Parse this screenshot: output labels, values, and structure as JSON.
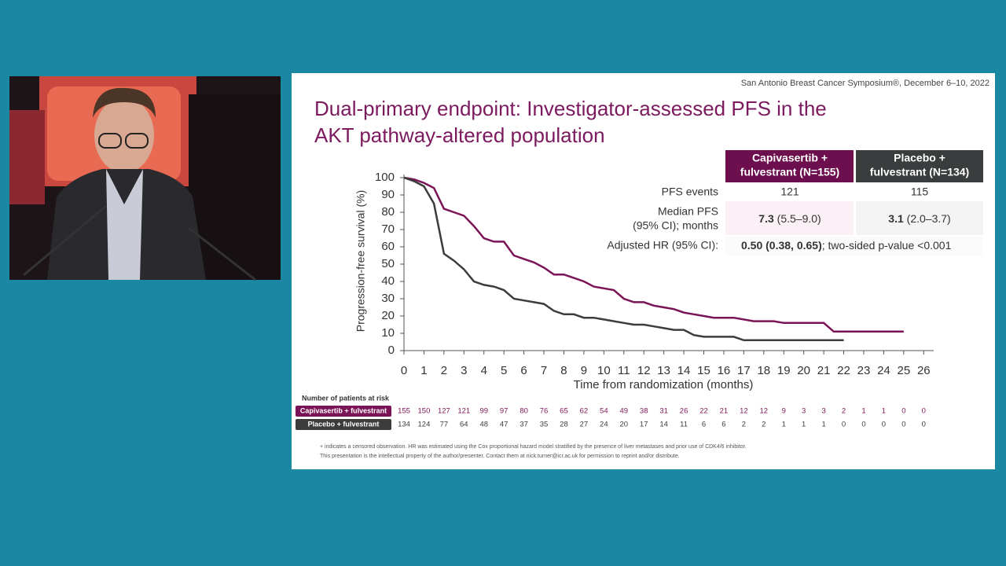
{
  "header": "San Antonio Breast Cancer Symposium®, December 6–10, 2022",
  "title": [
    "Dual-primary endpoint: Investigator-assessed PFS in the",
    "AKT pathway-altered population"
  ],
  "chart_data": {
    "type": "line",
    "x_label": "Time from randomization (months)",
    "y_label": "Progression-free survival (%)",
    "xlim": [
      0,
      26.5
    ],
    "ylim": [
      0,
      100
    ],
    "xticks": [
      0,
      1,
      2,
      3,
      4,
      5,
      6,
      7,
      8,
      9,
      10,
      11,
      12,
      13,
      14,
      15,
      16,
      17,
      18,
      19,
      20,
      21,
      22,
      23,
      24,
      25,
      26
    ],
    "yticks": [
      0,
      10,
      20,
      30,
      40,
      50,
      60,
      70,
      80,
      90,
      100
    ],
    "x": [
      0,
      0.5,
      1,
      1.5,
      2,
      2.5,
      3,
      3.5,
      4,
      4.5,
      5,
      5.5,
      6,
      6.5,
      7,
      7.5,
      8,
      8.5,
      9,
      9.5,
      10,
      10.5,
      11,
      11.5,
      12,
      12.5,
      13,
      13.5,
      14,
      14.5,
      15,
      15.5,
      16,
      16.5,
      17,
      17.5,
      18,
      18.5,
      19,
      19.5,
      20,
      20.5,
      21,
      21.5,
      22,
      22.5,
      23,
      23.5,
      24,
      24.5,
      25
    ],
    "series": [
      {
        "name": "Capivasertib + fulvestrant",
        "color": "#7b1457",
        "values": [
          100,
          99,
          97,
          94,
          82,
          80,
          78,
          72,
          65,
          63,
          63,
          55,
          53,
          51,
          48,
          44,
          44,
          42,
          40,
          37,
          36,
          35,
          30,
          28,
          28,
          26,
          25,
          24,
          22,
          21,
          20,
          19,
          19,
          19,
          18,
          17,
          17,
          17,
          16,
          16,
          16,
          16,
          16,
          11,
          11,
          11,
          11,
          11,
          11,
          11,
          11
        ]
      },
      {
        "name": "Placebo + fulvestrant",
        "color": "#3c3c3c",
        "values": [
          100,
          98,
          95,
          85,
          56,
          52,
          47,
          40,
          38,
          37,
          35,
          30,
          29,
          28,
          27,
          23,
          21,
          21,
          19,
          19,
          18,
          17,
          16,
          15,
          15,
          14,
          13,
          12,
          12,
          9,
          8,
          8,
          8,
          8,
          6,
          6,
          6,
          6,
          6,
          6,
          6,
          6,
          6,
          6,
          6,
          null,
          null,
          null,
          null,
          null,
          null
        ]
      }
    ]
  },
  "risk_table": {
    "title": "Number of patients at risk",
    "rows": [
      [
        155,
        150,
        127,
        121,
        99,
        97,
        80,
        76,
        65,
        62,
        54,
        49,
        38,
        31,
        26,
        22,
        21,
        12,
        12,
        9,
        3,
        3,
        2,
        1,
        1,
        0,
        0
      ],
      [
        134,
        124,
        77,
        64,
        48,
        47,
        37,
        35,
        28,
        27,
        24,
        20,
        17,
        14,
        11,
        6,
        6,
        2,
        2,
        1,
        1,
        1,
        0,
        0,
        0,
        0,
        0
      ]
    ]
  },
  "stats": {
    "headers": [
      [
        "Capivasertib +",
        "fulvestrant (N=155)"
      ],
      [
        "Placebo +",
        "fulvestrant (N=134)"
      ]
    ],
    "pfs_events": {
      "label": "PFS events",
      "values": [
        121,
        115
      ]
    },
    "median_pfs": {
      "label": [
        "Median PFS",
        "(95% CI); months"
      ],
      "cells": [
        {
          "bold": "7.3",
          "rest": "(5.5–9.0)"
        },
        {
          "bold": "3.1",
          "rest": "(2.0–3.7)"
        }
      ]
    },
    "hr": {
      "label": "Adjusted HR (95% CI):",
      "bold": "0.50 (0.38, 0.65)",
      "rest": "; two-sided p-value <0.001"
    }
  },
  "footnotes": [
    "+ indicates a censored observation. HR was estimated using the Cox proportional hazard model stratified by the presence of liver metastases and prior use of CDK4/6 inhibitor.",
    "This presentation is the intellectual property of the author/presenter. Contact them at nick.turner@icr.ac.uk for permission to reprint and/or distribute."
  ]
}
